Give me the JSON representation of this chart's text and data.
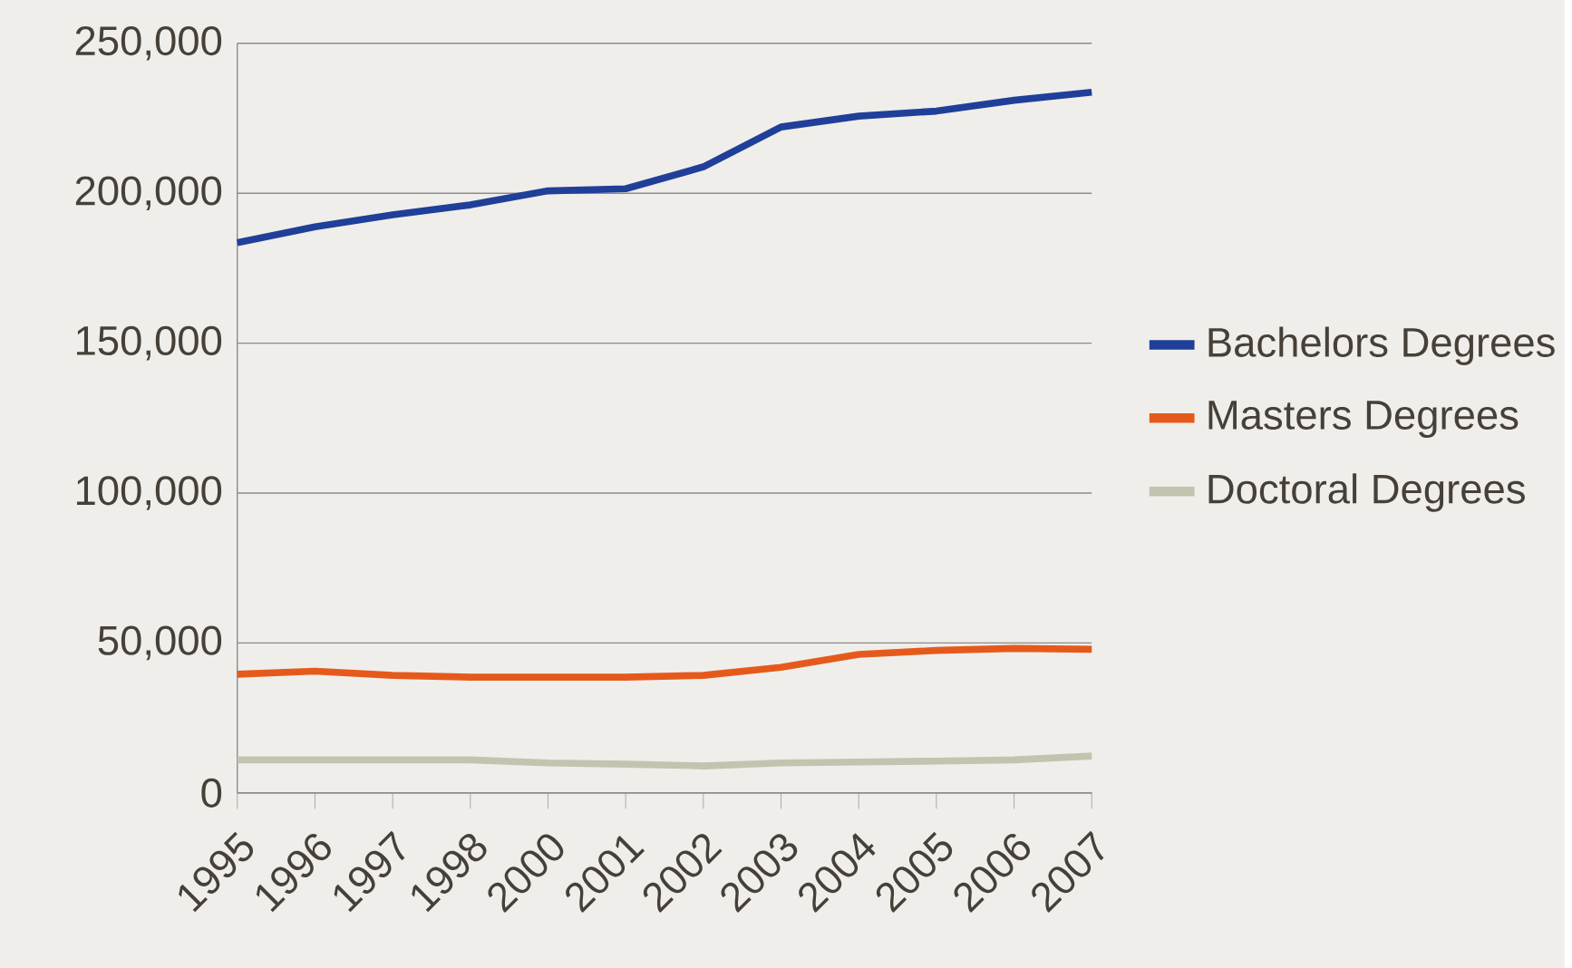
{
  "chart_data": {
    "type": "line",
    "categories": [
      "1995",
      "1996",
      "1997",
      "1998",
      "2000",
      "2001",
      "2002",
      "2003",
      "2004",
      "2005",
      "2006",
      "2007"
    ],
    "series": [
      {
        "name": "Bachelors Degrees",
        "color": "#1f3f99",
        "values": [
          183500,
          188800,
          192800,
          196100,
          200800,
          201500,
          208800,
          222100,
          225700,
          227400,
          231000,
          233700
        ]
      },
      {
        "name": "Masters Degrees",
        "color": "#e55a1c",
        "values": [
          39600,
          40600,
          39200,
          38600,
          38600,
          38600,
          39200,
          41900,
          46200,
          47500,
          48200,
          47900
        ]
      },
      {
        "name": "Doctoral Degrees",
        "color": "#c4c3b0",
        "values": [
          11000,
          11000,
          11000,
          11000,
          10000,
          9600,
          9000,
          10000,
          10300,
          10600,
          11000,
          12300
        ]
      }
    ],
    "ylim": [
      0,
      250000
    ],
    "yticks": [
      {
        "value": 0,
        "label": "0"
      },
      {
        "value": 50000,
        "label": "50,000"
      },
      {
        "value": 100000,
        "label": "100,000"
      },
      {
        "value": 150000,
        "label": "150,000"
      },
      {
        "value": 200000,
        "label": "200,000"
      },
      {
        "value": 250000,
        "label": "250,000"
      }
    ],
    "grid": "y",
    "legend": "right",
    "marker": "none",
    "line_style": "solid"
  }
}
